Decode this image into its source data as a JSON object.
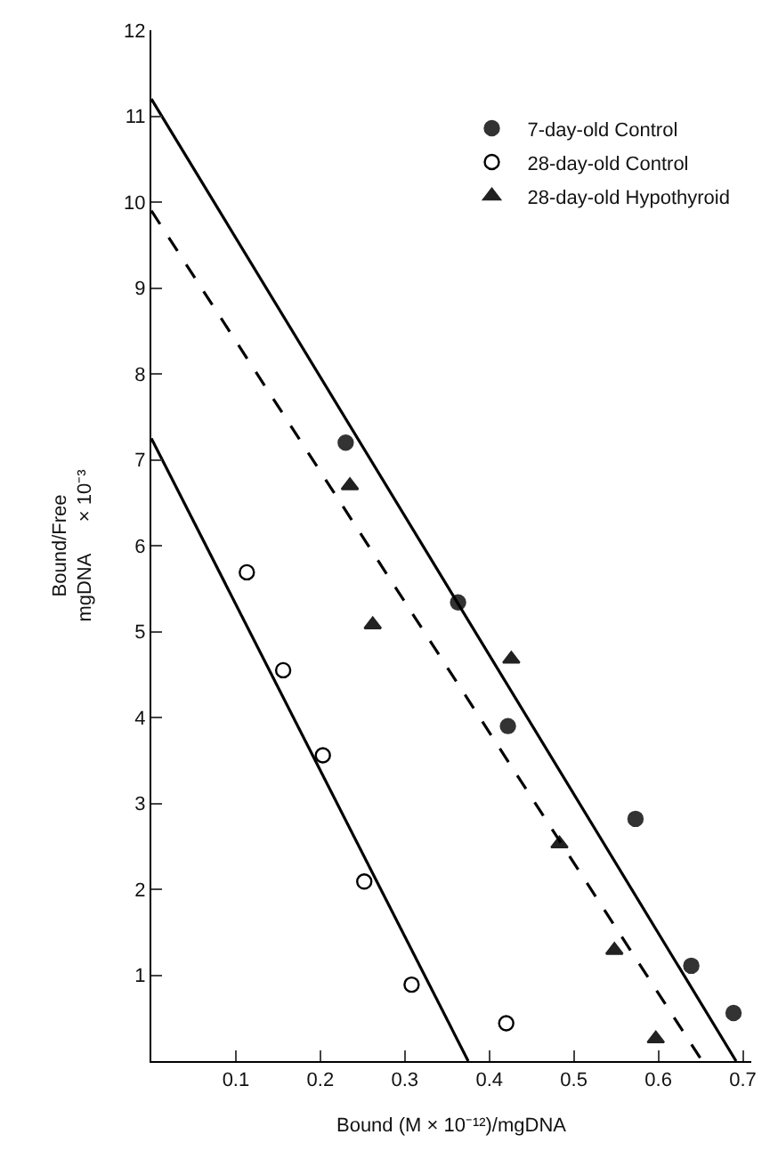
{
  "chart_data": {
    "type": "scatter",
    "xlabel": "Bound (M × 10⁻¹²)/mgDNA",
    "ylabel": "Bound/Free\nmgDNA      × 10⁻³",
    "xlim": [
      0,
      0.71
    ],
    "ylim": [
      0,
      12
    ],
    "xticks": [
      0.1,
      0.2,
      0.3,
      0.4,
      0.5,
      0.6,
      0.7
    ],
    "yticks": [
      1,
      2,
      3,
      4,
      5,
      6,
      7,
      8,
      9,
      10,
      11,
      12
    ],
    "legend": "top right",
    "series": [
      {
        "name": "7-day-old Control",
        "marker": "circle",
        "color": "#333333",
        "x": [
          0.23,
          0.363,
          0.422,
          0.573,
          0.639,
          0.689
        ],
        "values": [
          7.2,
          5.34,
          3.9,
          2.82,
          1.11,
          0.56
        ]
      },
      {
        "name": "28-day-old Control",
        "marker": "circle-open",
        "color": "#000000",
        "x": [
          0.113,
          0.156,
          0.203,
          0.252,
          0.308,
          0.42
        ],
        "values": [
          5.69,
          4.55,
          3.56,
          2.09,
          0.89,
          0.44
        ]
      },
      {
        "name": "28-day-old Hypothyroid",
        "marker": "triangle",
        "color": "#222222",
        "x": [
          0.235,
          0.262,
          0.426,
          0.483,
          0.548,
          0.597
        ],
        "values": [
          6.7,
          5.08,
          4.68,
          2.53,
          1.29,
          0.26
        ]
      },
      {
        "type": "line",
        "line_style": "solid",
        "color": "#000000",
        "x": [
          0,
          0.692
        ],
        "values": [
          11.2,
          0
        ]
      },
      {
        "type": "line",
        "line_style": "solid",
        "color": "#000000",
        "x": [
          0,
          0.375
        ],
        "values": [
          7.25,
          0
        ]
      },
      {
        "type": "line",
        "line_style": "dashed",
        "color": "#000000",
        "x": [
          0,
          0.652
        ],
        "values": [
          9.9,
          0
        ]
      }
    ]
  }
}
